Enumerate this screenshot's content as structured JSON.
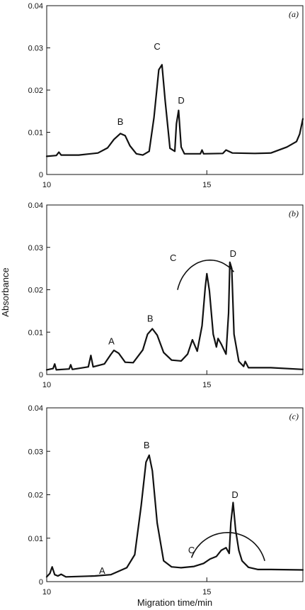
{
  "chart_data": [
    {
      "type": "line",
      "panel_label": "(a)",
      "xlim": [
        10,
        18
      ],
      "ylim": [
        0,
        0.04
      ],
      "xticks": [
        10,
        15
      ],
      "yticks": [
        0,
        0.01,
        0.02,
        0.03,
        0.04
      ],
      "ytick_labels": [
        "0",
        "0.01",
        "0.02",
        "0.03",
        "0.04"
      ],
      "series": [
        {
          "x": [
            10.0,
            10.3,
            10.38,
            10.45,
            11.0,
            11.6,
            11.9,
            12.1,
            12.3,
            12.45,
            12.6,
            12.8,
            13.0,
            13.2,
            13.35,
            13.5,
            13.6,
            13.7,
            13.85,
            14.0,
            14.05,
            14.12,
            14.2,
            14.3,
            14.8,
            14.85,
            14.9,
            15.5,
            15.6,
            15.8,
            16.5,
            17.0,
            17.5,
            17.8,
            17.9,
            18.0
          ],
          "y": [
            0.0043,
            0.0045,
            0.0053,
            0.0046,
            0.0046,
            0.0051,
            0.0063,
            0.0083,
            0.0097,
            0.0092,
            0.0068,
            0.0049,
            0.0046,
            0.0055,
            0.0135,
            0.0248,
            0.026,
            0.0175,
            0.0062,
            0.0055,
            0.012,
            0.0152,
            0.0065,
            0.0049,
            0.0049,
            0.0058,
            0.0049,
            0.005,
            0.0058,
            0.0051,
            0.005,
            0.0051,
            0.0065,
            0.0078,
            0.0096,
            0.0132
          ]
        }
      ],
      "annotations": [
        {
          "text": "B",
          "x": 12.3,
          "y": 0.0118
        },
        {
          "text": "C",
          "x": 13.45,
          "y": 0.0296
        },
        {
          "text": "D",
          "x": 14.2,
          "y": 0.0168
        }
      ],
      "arc": null
    },
    {
      "type": "line",
      "panel_label": "(b)",
      "xlim": [
        10,
        18
      ],
      "ylim": [
        0,
        0.04
      ],
      "xticks": [
        10,
        15
      ],
      "yticks": [
        0,
        0.01,
        0.02,
        0.03,
        0.04
      ],
      "ytick_labels": [
        "0",
        "0.01",
        "0.02",
        "0.03",
        "0.04"
      ],
      "series": [
        {
          "x": [
            10.0,
            10.2,
            10.25,
            10.3,
            10.7,
            10.75,
            10.8,
            11.3,
            11.38,
            11.45,
            11.8,
            12.0,
            12.1,
            12.25,
            12.45,
            12.7,
            13.0,
            13.15,
            13.3,
            13.45,
            13.65,
            13.9,
            14.2,
            14.4,
            14.55,
            14.7,
            14.85,
            14.95,
            15.0,
            15.08,
            15.2,
            15.3,
            15.35,
            15.45,
            15.6,
            15.68,
            15.72,
            15.78,
            15.85,
            16.0,
            16.15,
            16.2,
            16.3,
            17.0,
            18.0
          ],
          "y": [
            0.0011,
            0.0014,
            0.0025,
            0.0011,
            0.0013,
            0.0023,
            0.0012,
            0.0018,
            0.0045,
            0.0018,
            0.0025,
            0.0047,
            0.0057,
            0.005,
            0.0029,
            0.0028,
            0.0058,
            0.0095,
            0.0108,
            0.0093,
            0.0052,
            0.0034,
            0.0032,
            0.0048,
            0.0082,
            0.0055,
            0.0115,
            0.0205,
            0.0238,
            0.0198,
            0.0095,
            0.0065,
            0.0085,
            0.0072,
            0.0048,
            0.0145,
            0.0265,
            0.025,
            0.0095,
            0.0031,
            0.0019,
            0.0031,
            0.0016,
            0.0016,
            0.0012
          ]
        }
      ],
      "annotations": [
        {
          "text": "A",
          "x": 12.02,
          "y": 0.0071
        },
        {
          "text": "B",
          "x": 13.23,
          "y": 0.0125
        },
        {
          "text": "C",
          "x": 13.95,
          "y": 0.0268
        },
        {
          "text": "D",
          "x": 15.82,
          "y": 0.0278
        }
      ],
      "arc": {
        "cx": 15.1,
        "cy": 0.0175,
        "rx": 1.05,
        "ry": 0.0095,
        "start_deg": 165,
        "end_deg": 45
      }
    },
    {
      "type": "line",
      "panel_label": "(c)",
      "xlim": [
        10,
        18
      ],
      "ylim": [
        0,
        0.04
      ],
      "xticks": [
        10,
        15
      ],
      "yticks": [
        0,
        0.01,
        0.02,
        0.03,
        0.04
      ],
      "ytick_labels": [
        "0",
        "0.01",
        "0.02",
        "0.03",
        "0.04"
      ],
      "series": [
        {
          "x": [
            10.0,
            10.1,
            10.17,
            10.25,
            10.35,
            10.45,
            10.6,
            11.5,
            12.0,
            12.5,
            12.75,
            12.95,
            13.1,
            13.2,
            13.3,
            13.45,
            13.65,
            13.9,
            14.2,
            14.6,
            14.9,
            15.1,
            15.3,
            15.45,
            15.6,
            15.7,
            15.75,
            15.82,
            15.9,
            16.0,
            16.1,
            16.3,
            16.6,
            17.0,
            18.0
          ],
          "y": [
            0.0011,
            0.0019,
            0.0034,
            0.0016,
            0.0013,
            0.0017,
            0.0011,
            0.0013,
            0.0016,
            0.0032,
            0.0062,
            0.0175,
            0.0275,
            0.0291,
            0.0255,
            0.0135,
            0.0048,
            0.0034,
            0.0032,
            0.0035,
            0.0042,
            0.0052,
            0.0058,
            0.0072,
            0.0078,
            0.0065,
            0.0135,
            0.0182,
            0.0118,
            0.0072,
            0.0048,
            0.0033,
            0.0028,
            0.0028,
            0.0027
          ]
        }
      ],
      "annotations": [
        {
          "text": "A",
          "x": 11.73,
          "y": 0.0018
        },
        {
          "text": "B",
          "x": 13.12,
          "y": 0.0307
        },
        {
          "text": "C",
          "x": 14.52,
          "y": 0.0065
        },
        {
          "text": "D",
          "x": 15.88,
          "y": 0.0193
        }
      ],
      "arc": {
        "cx": 15.65,
        "cy": 0.0025,
        "rx": 1.2,
        "ry": 0.0088,
        "start_deg": 160,
        "end_deg": 15
      }
    }
  ],
  "ylabel": "Absorbance",
  "xlabel": "Migration time/min"
}
